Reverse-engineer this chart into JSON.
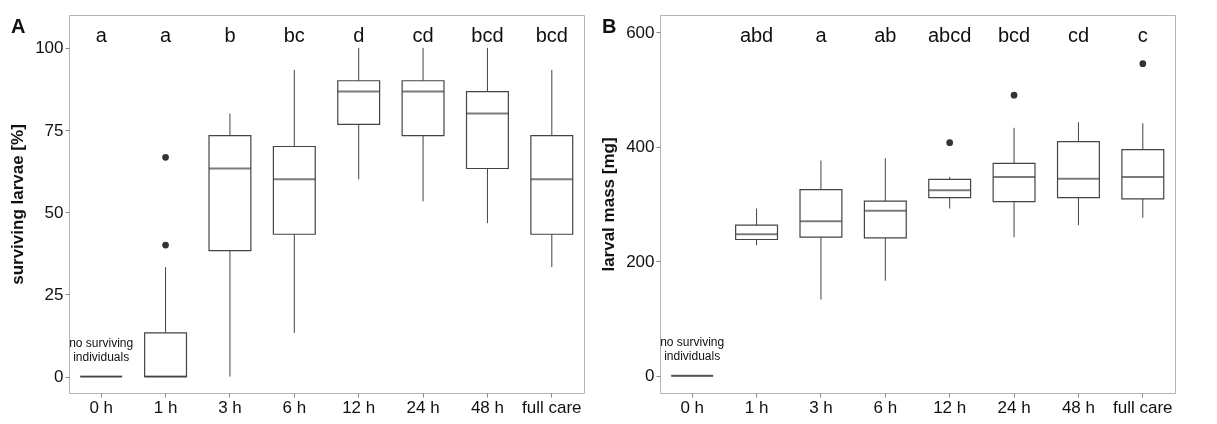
{
  "chart_data": [
    {
      "type": "box",
      "title": "A",
      "ylabel": "surviving larvae [%]",
      "categories": [
        "0 h",
        "1 h",
        "3 h",
        "6 h",
        "12 h",
        "24 h",
        "48 h",
        "full care"
      ],
      "ylim": [
        -5,
        110
      ],
      "yticks": [
        0,
        25,
        50,
        75,
        100
      ],
      "grid": false,
      "boxes": [
        {
          "low": 0,
          "q1": 0,
          "median": 0,
          "q3": 0,
          "high": 0
        },
        {
          "low": 0,
          "q1": 0,
          "median": 0,
          "q3": 13.3,
          "high": 33.3,
          "outliers": [
            40,
            66.7
          ]
        },
        {
          "low": 0,
          "q1": 38.3,
          "median": 63.3,
          "q3": 73.3,
          "high": 80
        },
        {
          "low": 13.3,
          "q1": 43.3,
          "median": 60,
          "q3": 70,
          "high": 93.3
        },
        {
          "low": 60,
          "q1": 76.7,
          "median": 86.7,
          "q3": 90,
          "high": 100
        },
        {
          "low": 53.3,
          "q1": 73.3,
          "median": 86.7,
          "q3": 90,
          "high": 100
        },
        {
          "low": 46.7,
          "q1": 63.3,
          "median": 80,
          "q3": 86.7,
          "high": 100
        },
        {
          "low": 33.3,
          "q1": 43.3,
          "median": 60,
          "q3": 73.3,
          "high": 93.3
        }
      ],
      "annotations": [
        "a",
        "a",
        "b",
        "bc",
        "d",
        "cd",
        "bcd",
        "bcd",
        "no surviving\nindividuals"
      ]
    },
    {
      "type": "box",
      "title": "B",
      "ylabel": "larval mass [mg]",
      "categories": [
        "0 h",
        "1 h",
        "3 h",
        "6 h",
        "12 h",
        "24 h",
        "48 h",
        "full care"
      ],
      "ylim": [
        -30,
        630
      ],
      "yticks": [
        0,
        200,
        400,
        600
      ],
      "grid": false,
      "boxes": [
        {
          "low": 0,
          "q1": 0,
          "median": 0,
          "q3": 0,
          "high": 0
        },
        {
          "low": 228,
          "q1": 238,
          "median": 247,
          "q3": 263,
          "high": 292
        },
        {
          "low": 133,
          "q1": 242,
          "median": 270,
          "q3": 325,
          "high": 376
        },
        {
          "low": 166,
          "q1": 241,
          "median": 288,
          "q3": 305,
          "high": 380
        },
        {
          "low": 292,
          "q1": 311,
          "median": 324,
          "q3": 343,
          "high": 347,
          "outliers": [
            407
          ]
        },
        {
          "low": 242,
          "q1": 304,
          "median": 347,
          "q3": 371,
          "high": 433,
          "outliers": [
            490
          ]
        },
        {
          "low": 263,
          "q1": 311,
          "median": 344,
          "q3": 409,
          "high": 443
        },
        {
          "low": 276,
          "q1": 309,
          "median": 347,
          "q3": 395,
          "high": 441,
          "outliers": [
            545
          ]
        }
      ],
      "annotations": [
        "abd",
        "a",
        "ab",
        "abcd",
        "bcd",
        "cd",
        "c",
        "no surviving\nindividuals"
      ]
    }
  ]
}
